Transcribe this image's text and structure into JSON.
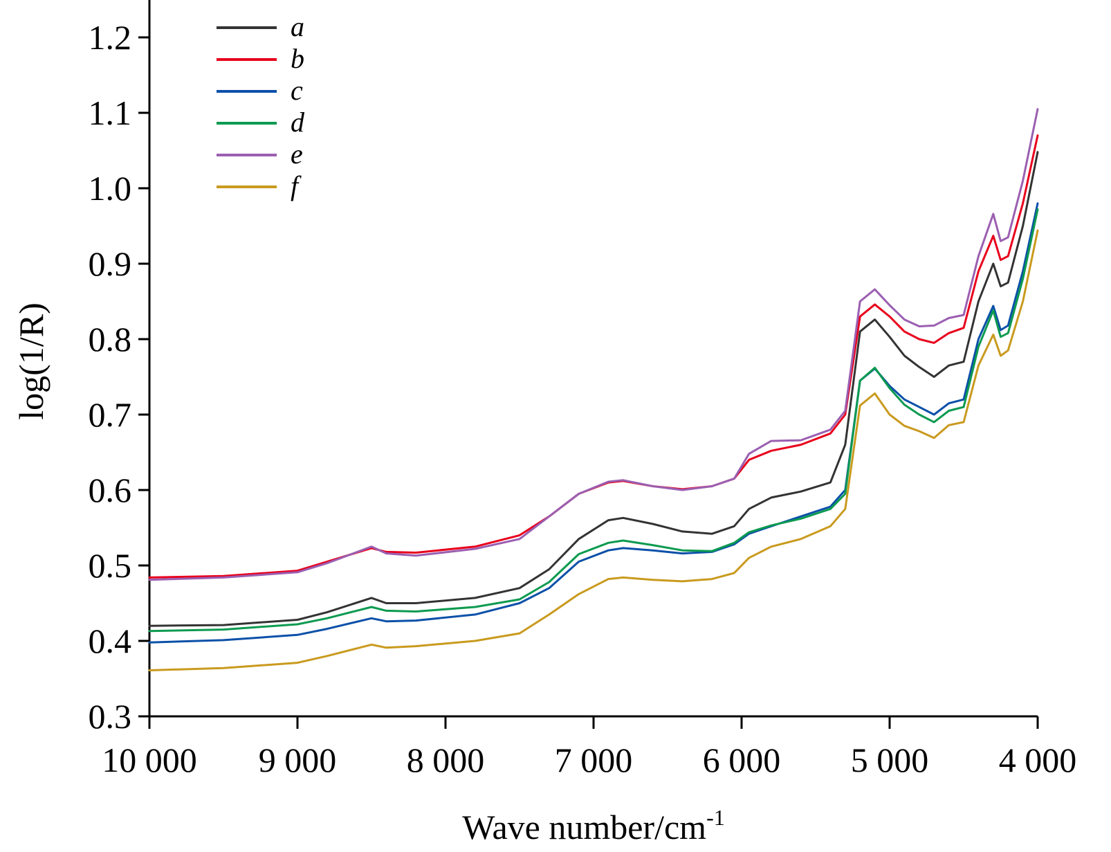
{
  "chart_data": {
    "type": "line",
    "xlabel": "Wave number/cm",
    "xlabel_sup": "-1",
    "ylabel": "log(1/R)",
    "xlim": [
      10000,
      4000
    ],
    "ylim": [
      0.3,
      1.25
    ],
    "x_ticks": [
      10000,
      9000,
      8000,
      7000,
      6000,
      5000,
      4000
    ],
    "x_tick_labels": [
      "10 000",
      "9 000",
      "8 000",
      "7 000",
      "6 000",
      "5 000",
      "4 000"
    ],
    "y_ticks": [
      0.3,
      0.4,
      0.5,
      0.6,
      0.7,
      0.8,
      0.9,
      1.0,
      1.1,
      1.2
    ],
    "y_tick_labels": [
      "0.3",
      "0.4",
      "0.5",
      "0.6",
      "0.7",
      "0.8",
      "0.9",
      "1.0",
      "1.1",
      "1.2"
    ],
    "x_reversed": true,
    "grid": false,
    "legend_position": "top-left",
    "x": [
      10000,
      9500,
      9000,
      8800,
      8500,
      8400,
      8200,
      7800,
      7500,
      7300,
      7100,
      6900,
      6800,
      6600,
      6400,
      6200,
      6050,
      5950,
      5800,
      5600,
      5400,
      5300,
      5200,
      5100,
      5000,
      4900,
      4800,
      4700,
      4600,
      4500,
      4400,
      4300,
      4250,
      4200,
      4100,
      4000
    ],
    "series": [
      {
        "name": "a",
        "color": "#333333",
        "values": [
          0.42,
          0.421,
          0.428,
          0.438,
          0.457,
          0.45,
          0.45,
          0.457,
          0.47,
          0.495,
          0.535,
          0.56,
          0.563,
          0.555,
          0.545,
          0.542,
          0.552,
          0.575,
          0.59,
          0.598,
          0.61,
          0.66,
          0.81,
          0.826,
          0.803,
          0.778,
          0.763,
          0.75,
          0.765,
          0.77,
          0.85,
          0.9,
          0.87,
          0.875,
          0.95,
          1.048
        ]
      },
      {
        "name": "b",
        "color": "#e8001c",
        "values": [
          0.484,
          0.486,
          0.493,
          0.505,
          0.523,
          0.518,
          0.517,
          0.525,
          0.54,
          0.565,
          0.595,
          0.61,
          0.612,
          0.605,
          0.601,
          0.605,
          0.615,
          0.64,
          0.652,
          0.66,
          0.675,
          0.7,
          0.83,
          0.846,
          0.83,
          0.81,
          0.8,
          0.795,
          0.808,
          0.815,
          0.89,
          0.937,
          0.905,
          0.91,
          0.98,
          1.07
        ]
      },
      {
        "name": "c",
        "color": "#0b50a8",
        "values": [
          0.398,
          0.401,
          0.408,
          0.416,
          0.43,
          0.426,
          0.427,
          0.435,
          0.45,
          0.47,
          0.505,
          0.52,
          0.523,
          0.52,
          0.516,
          0.518,
          0.528,
          0.542,
          0.552,
          0.565,
          0.578,
          0.6,
          0.745,
          0.761,
          0.738,
          0.72,
          0.71,
          0.7,
          0.715,
          0.72,
          0.8,
          0.844,
          0.812,
          0.818,
          0.89,
          0.98
        ]
      },
      {
        "name": "d",
        "color": "#0c9a50",
        "values": [
          0.413,
          0.415,
          0.422,
          0.43,
          0.445,
          0.44,
          0.439,
          0.445,
          0.455,
          0.478,
          0.515,
          0.53,
          0.533,
          0.527,
          0.52,
          0.519,
          0.53,
          0.544,
          0.553,
          0.562,
          0.575,
          0.595,
          0.745,
          0.762,
          0.735,
          0.713,
          0.7,
          0.69,
          0.705,
          0.71,
          0.79,
          0.838,
          0.803,
          0.808,
          0.88,
          0.972
        ]
      },
      {
        "name": "e",
        "color": "#9b5fb1",
        "values": [
          0.481,
          0.484,
          0.491,
          0.503,
          0.525,
          0.516,
          0.513,
          0.522,
          0.535,
          0.565,
          0.595,
          0.611,
          0.613,
          0.605,
          0.6,
          0.605,
          0.615,
          0.648,
          0.665,
          0.666,
          0.68,
          0.705,
          0.85,
          0.866,
          0.845,
          0.826,
          0.817,
          0.818,
          0.828,
          0.832,
          0.91,
          0.966,
          0.93,
          0.935,
          1.01,
          1.105
        ]
      },
      {
        "name": "f",
        "color": "#c99a1e",
        "values": [
          0.361,
          0.364,
          0.371,
          0.38,
          0.395,
          0.391,
          0.393,
          0.4,
          0.41,
          0.435,
          0.462,
          0.482,
          0.484,
          0.481,
          0.479,
          0.482,
          0.49,
          0.51,
          0.525,
          0.535,
          0.552,
          0.575,
          0.712,
          0.728,
          0.7,
          0.685,
          0.678,
          0.669,
          0.686,
          0.69,
          0.765,
          0.806,
          0.778,
          0.785,
          0.85,
          0.944
        ]
      }
    ]
  }
}
